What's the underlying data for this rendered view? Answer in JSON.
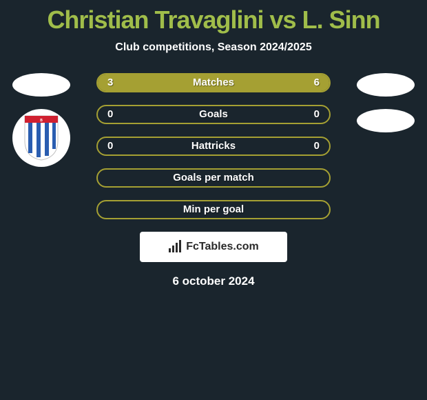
{
  "title": "Christian Travaglini vs L. Sinn",
  "subtitle": "Club competitions, Season 2024/2025",
  "date": "6 october 2024",
  "footer_brand": "FcTables.com",
  "colors": {
    "background": "#1a252d",
    "accent": "#a0bd4a",
    "bar_border": "#a5a033",
    "bar_fill": "#a5a033",
    "text_white": "#ffffff"
  },
  "stats": [
    {
      "label": "Matches",
      "left_val": "3",
      "right_val": "6",
      "left_pct": 33.3,
      "right_pct": 66.7
    },
    {
      "label": "Goals",
      "left_val": "0",
      "right_val": "0",
      "left_pct": 0,
      "right_pct": 0
    },
    {
      "label": "Hattricks",
      "left_val": "0",
      "right_val": "0",
      "left_pct": 0,
      "right_pct": 0
    },
    {
      "label": "Goals per match",
      "left_val": "",
      "right_val": "",
      "left_pct": 0,
      "right_pct": 0
    },
    {
      "label": "Min per goal",
      "left_val": "",
      "right_val": "",
      "left_pct": 0,
      "right_pct": 0
    }
  ],
  "left_player": {
    "has_avatar": true,
    "has_club": true
  },
  "right_player": {
    "has_avatar": true,
    "has_club": true
  },
  "club_badge": {
    "stripe_color": "#2a5db0",
    "bg_color": "#ffffff",
    "accent_top": "#d02030"
  }
}
